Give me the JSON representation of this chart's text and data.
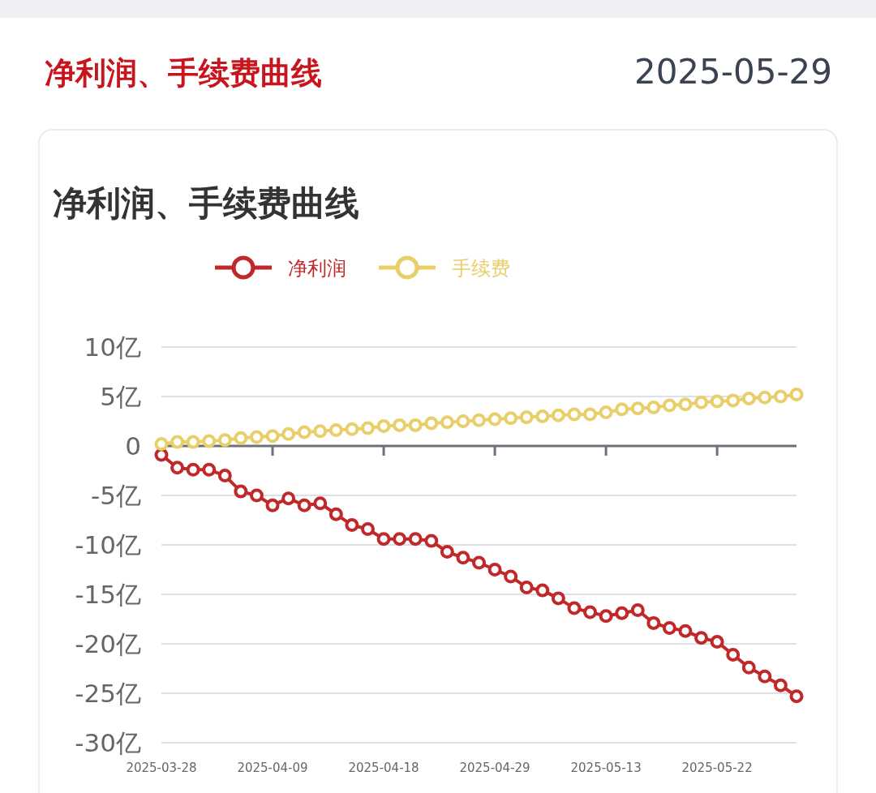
{
  "chart_data": {
    "type": "line",
    "title": "净利润、手续费曲线",
    "annotations": [
      "净利润、手续费曲线",
      "2025-05-29"
    ],
    "categories": [
      "2025-03-28",
      null,
      null,
      null,
      null,
      null,
      null,
      "2025-04-09",
      null,
      null,
      null,
      null,
      null,
      null,
      "2025-04-18",
      null,
      null,
      null,
      null,
      null,
      null,
      "2025-04-29",
      null,
      null,
      null,
      null,
      null,
      null,
      "2025-05-13",
      null,
      null,
      null,
      null,
      null,
      null,
      "2025-05-22",
      null,
      null,
      null,
      null,
      null
    ],
    "series": [
      {
        "name": "净利润",
        "color": "#c0282a",
        "values": [
          -0.9,
          -2.2,
          -2.4,
          -2.4,
          -3.0,
          -4.6,
          -5.0,
          -6.0,
          -5.3,
          -6.0,
          -5.8,
          -6.9,
          -8.0,
          -8.4,
          -9.4,
          -9.4,
          -9.4,
          -9.6,
          -10.7,
          -11.3,
          -11.8,
          -12.5,
          -13.2,
          -14.3,
          -14.6,
          -15.4,
          -16.4,
          -16.8,
          -17.2,
          -16.9,
          -16.6,
          -17.9,
          -18.4,
          -18.7,
          -19.4,
          -19.8,
          -21.1,
          -22.4,
          -23.3,
          -24.2,
          -25.3
        ]
      },
      {
        "name": "手续费",
        "color": "#e8cf6a",
        "values": [
          0.2,
          0.4,
          0.4,
          0.5,
          0.6,
          0.8,
          0.9,
          1.0,
          1.2,
          1.4,
          1.5,
          1.6,
          1.7,
          1.8,
          2.0,
          2.1,
          2.1,
          2.3,
          2.4,
          2.5,
          2.6,
          2.7,
          2.8,
          2.9,
          3.0,
          3.1,
          3.2,
          3.2,
          3.4,
          3.7,
          3.8,
          3.9,
          4.1,
          4.2,
          4.4,
          4.5,
          4.6,
          4.8,
          4.9,
          5.0,
          5.2
        ]
      }
    ],
    "ylim": [
      -30,
      10
    ],
    "yticks": [
      {
        "value": 10,
        "label": "10亿"
      },
      {
        "value": 5,
        "label": "5亿"
      },
      0,
      {
        "value": -5,
        "label": "-5亿"
      },
      {
        "value": -10,
        "label": "-10亿"
      },
      {
        "value": -15,
        "label": "-15亿"
      },
      {
        "value": -20,
        "label": "-20亿"
      },
      {
        "value": -25,
        "label": "-25亿"
      },
      {
        "value": -30,
        "label": "-30亿"
      }
    ],
    "grid": "y",
    "legend": "top",
    "marker": "circle",
    "line_style": "solid"
  }
}
